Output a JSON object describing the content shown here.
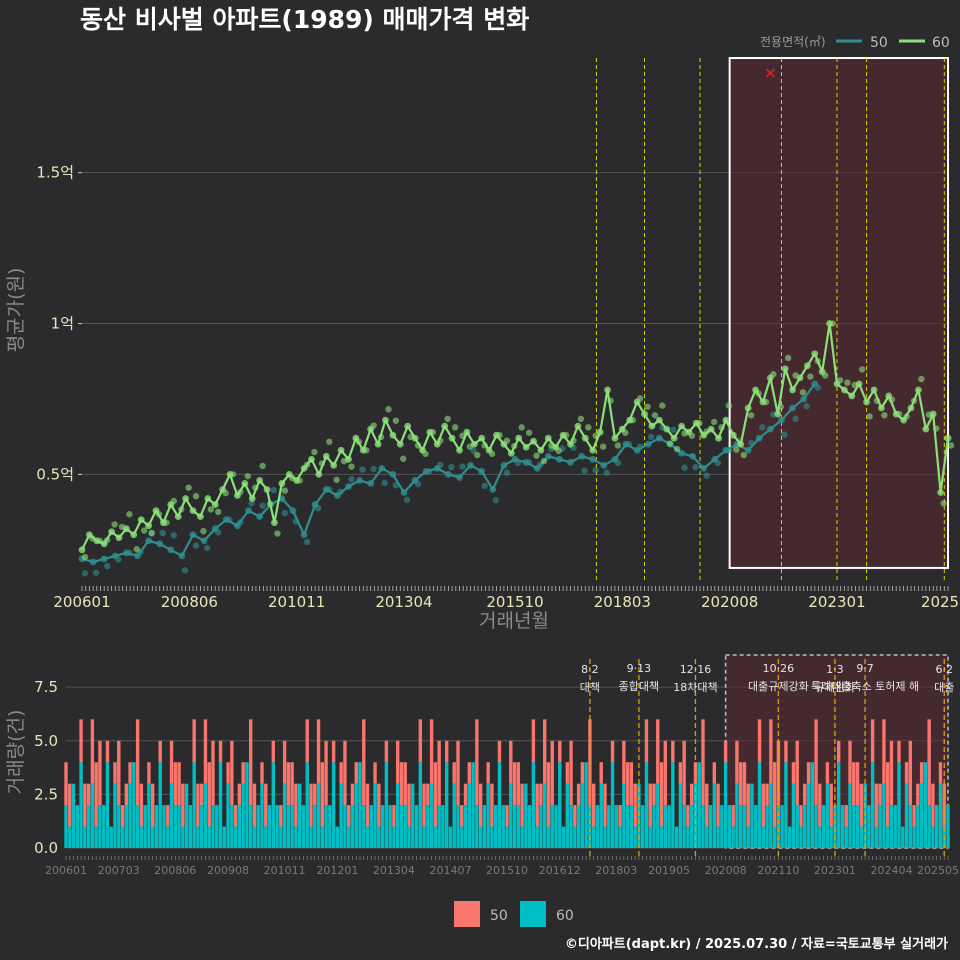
{
  "chart_data": [
    {
      "type": "line",
      "title": "동산 비사벌 아파트(1989) 매매가격 변화",
      "xlabel": "거래년월",
      "ylabel": "평균가(원)",
      "x_range": [
        "2006-01",
        "2025-07"
      ],
      "ylim": [
        0.15,
        1.9
      ],
      "y_ticks": [
        {
          "v": 0.5,
          "label": "0.5억"
        },
        {
          "v": 1.0,
          "label": "1억"
        },
        {
          "v": 1.5,
          "label": "1.5억"
        }
      ],
      "x_tick_labels": [
        "200601",
        "200806",
        "201011",
        "201304",
        "201510",
        "201803",
        "202008",
        "202301",
        "2025"
      ],
      "legend_title": "전용면적(㎡)",
      "legend_position": "top-right",
      "grid": true,
      "highlight_box": {
        "from": "2020-08",
        "to": "2025-07",
        "ymin": 0.19,
        "ymax": 1.88
      },
      "outlier_marker": {
        "x": "2021-07",
        "y": 1.83
      },
      "series": [
        {
          "name": "50",
          "color": "#2f8f8f",
          "points": [
            [
              "2006-01",
              0.22
            ],
            [
              "2006-04",
              0.21
            ],
            [
              "2006-07",
              0.22
            ],
            [
              "2006-10",
              0.23
            ],
            [
              "2007-01",
              0.24
            ],
            [
              "2007-04",
              0.23
            ],
            [
              "2007-07",
              0.28
            ],
            [
              "2007-10",
              0.27
            ],
            [
              "2008-01",
              0.25
            ],
            [
              "2008-04",
              0.23
            ],
            [
              "2008-07",
              0.3
            ],
            [
              "2008-10",
              0.28
            ],
            [
              "2009-01",
              0.32
            ],
            [
              "2009-04",
              0.35
            ],
            [
              "2009-07",
              0.33
            ],
            [
              "2009-10",
              0.38
            ],
            [
              "2010-01",
              0.36
            ],
            [
              "2010-04",
              0.4
            ],
            [
              "2010-07",
              0.42
            ],
            [
              "2010-10",
              0.38
            ],
            [
              "2011-01",
              0.3
            ],
            [
              "2011-04",
              0.4
            ],
            [
              "2011-07",
              0.45
            ],
            [
              "2011-10",
              0.43
            ],
            [
              "2012-01",
              0.46
            ],
            [
              "2012-04",
              0.48
            ],
            [
              "2012-07",
              0.47
            ],
            [
              "2012-10",
              0.52
            ],
            [
              "2013-01",
              0.5
            ],
            [
              "2013-04",
              0.44
            ],
            [
              "2013-07",
              0.48
            ],
            [
              "2013-10",
              0.51
            ],
            [
              "2014-01",
              0.52
            ],
            [
              "2014-04",
              0.5
            ],
            [
              "2014-07",
              0.49
            ],
            [
              "2014-10",
              0.53
            ],
            [
              "2015-01",
              0.51
            ],
            [
              "2015-04",
              0.45
            ],
            [
              "2015-07",
              0.53
            ],
            [
              "2015-10",
              0.55
            ],
            [
              "2016-01",
              0.54
            ],
            [
              "2016-04",
              0.52
            ],
            [
              "2016-07",
              0.56
            ],
            [
              "2016-10",
              0.55
            ],
            [
              "2017-01",
              0.54
            ],
            [
              "2017-04",
              0.56
            ],
            [
              "2017-07",
              0.55
            ],
            [
              "2017-10",
              0.53
            ],
            [
              "2018-01",
              0.55
            ],
            [
              "2018-04",
              0.6
            ],
            [
              "2018-07",
              0.58
            ],
            [
              "2018-10",
              0.6
            ],
            [
              "2019-01",
              0.62
            ],
            [
              "2019-04",
              0.6
            ],
            [
              "2019-07",
              0.57
            ],
            [
              "2019-10",
              0.56
            ],
            [
              "2020-01",
              0.52
            ],
            [
              "2020-04",
              0.55
            ],
            [
              "2020-07",
              0.58
            ],
            [
              "2020-10",
              0.6
            ],
            [
              "2021-01",
              0.58
            ],
            [
              "2021-04",
              0.62
            ],
            [
              "2021-07",
              0.65
            ],
            [
              "2021-10",
              0.68
            ],
            [
              "2022-01",
              0.72
            ],
            [
              "2022-04",
              0.75
            ],
            [
              "2022-07",
              0.8
            ]
          ]
        },
        {
          "name": "60",
          "color": "#8ce07a",
          "points": [
            [
              "2006-01",
              0.25
            ],
            [
              "2006-03",
              0.3
            ],
            [
              "2006-05",
              0.28
            ],
            [
              "2006-07",
              0.27
            ],
            [
              "2006-09",
              0.31
            ],
            [
              "2006-11",
              0.29
            ],
            [
              "2007-01",
              0.32
            ],
            [
              "2007-03",
              0.3
            ],
            [
              "2007-05",
              0.35
            ],
            [
              "2007-07",
              0.33
            ],
            [
              "2007-09",
              0.38
            ],
            [
              "2007-11",
              0.34
            ],
            [
              "2008-01",
              0.4
            ],
            [
              "2008-03",
              0.36
            ],
            [
              "2008-05",
              0.42
            ],
            [
              "2008-07",
              0.38
            ],
            [
              "2008-09",
              0.36
            ],
            [
              "2008-11",
              0.42
            ],
            [
              "2009-01",
              0.4
            ],
            [
              "2009-03",
              0.45
            ],
            [
              "2009-05",
              0.5
            ],
            [
              "2009-07",
              0.43
            ],
            [
              "2009-09",
              0.47
            ],
            [
              "2009-11",
              0.42
            ],
            [
              "2010-01",
              0.48
            ],
            [
              "2010-03",
              0.45
            ],
            [
              "2010-05",
              0.34
            ],
            [
              "2010-07",
              0.47
            ],
            [
              "2010-09",
              0.5
            ],
            [
              "2010-11",
              0.48
            ],
            [
              "2011-01",
              0.52
            ],
            [
              "2011-03",
              0.55
            ],
            [
              "2011-05",
              0.5
            ],
            [
              "2011-07",
              0.56
            ],
            [
              "2011-09",
              0.53
            ],
            [
              "2011-11",
              0.58
            ],
            [
              "2012-01",
              0.55
            ],
            [
              "2012-03",
              0.62
            ],
            [
              "2012-05",
              0.58
            ],
            [
              "2012-07",
              0.65
            ],
            [
              "2012-09",
              0.6
            ],
            [
              "2012-11",
              0.68
            ],
            [
              "2013-01",
              0.63
            ],
            [
              "2013-03",
              0.6
            ],
            [
              "2013-05",
              0.66
            ],
            [
              "2013-07",
              0.62
            ],
            [
              "2013-09",
              0.58
            ],
            [
              "2013-11",
              0.64
            ],
            [
              "2014-01",
              0.6
            ],
            [
              "2014-03",
              0.66
            ],
            [
              "2014-05",
              0.62
            ],
            [
              "2014-07",
              0.58
            ],
            [
              "2014-09",
              0.64
            ],
            [
              "2014-11",
              0.6
            ],
            [
              "2015-01",
              0.62
            ],
            [
              "2015-03",
              0.58
            ],
            [
              "2015-05",
              0.63
            ],
            [
              "2015-07",
              0.6
            ],
            [
              "2015-09",
              0.57
            ],
            [
              "2015-11",
              0.62
            ],
            [
              "2016-01",
              0.59
            ],
            [
              "2016-03",
              0.61
            ],
            [
              "2016-05",
              0.58
            ],
            [
              "2016-07",
              0.62
            ],
            [
              "2016-09",
              0.59
            ],
            [
              "2016-11",
              0.63
            ],
            [
              "2017-01",
              0.6
            ],
            [
              "2017-03",
              0.66
            ],
            [
              "2017-05",
              0.62
            ],
            [
              "2017-07",
              0.58
            ],
            [
              "2017-09",
              0.64
            ],
            [
              "2017-11",
              0.78
            ],
            [
              "2018-01",
              0.62
            ],
            [
              "2018-03",
              0.65
            ],
            [
              "2018-05",
              0.68
            ],
            [
              "2018-07",
              0.74
            ],
            [
              "2018-09",
              0.7
            ],
            [
              "2018-11",
              0.66
            ],
            [
              "2019-01",
              0.68
            ],
            [
              "2019-03",
              0.65
            ],
            [
              "2019-05",
              0.62
            ],
            [
              "2019-07",
              0.66
            ],
            [
              "2019-09",
              0.64
            ],
            [
              "2019-11",
              0.67
            ],
            [
              "2020-01",
              0.63
            ],
            [
              "2020-03",
              0.65
            ],
            [
              "2020-05",
              0.62
            ],
            [
              "2020-07",
              0.68
            ],
            [
              "2020-09",
              0.63
            ],
            [
              "2020-11",
              0.6
            ],
            [
              "2021-01",
              0.72
            ],
            [
              "2021-03",
              0.78
            ],
            [
              "2021-05",
              0.74
            ],
            [
              "2021-07",
              0.82
            ],
            [
              "2021-09",
              0.7
            ],
            [
              "2021-11",
              0.85
            ],
            [
              "2022-01",
              0.78
            ],
            [
              "2022-03",
              0.82
            ],
            [
              "2022-05",
              0.86
            ],
            [
              "2022-07",
              0.9
            ],
            [
              "2022-09",
              0.84
            ],
            [
              "2022-11",
              1.0
            ],
            [
              "2023-01",
              0.8
            ],
            [
              "2023-03",
              0.78
            ],
            [
              "2023-05",
              0.76
            ],
            [
              "2023-07",
              0.8
            ],
            [
              "2023-09",
              0.74
            ],
            [
              "2023-11",
              0.78
            ],
            [
              "2024-01",
              0.72
            ],
            [
              "2024-03",
              0.76
            ],
            [
              "2024-05",
              0.7
            ],
            [
              "2024-07",
              0.68
            ],
            [
              "2024-09",
              0.72
            ],
            [
              "2024-11",
              0.78
            ],
            [
              "2025-01",
              0.65
            ],
            [
              "2025-03",
              0.7
            ],
            [
              "2025-05",
              0.44
            ],
            [
              "2025-07",
              0.62
            ]
          ]
        }
      ]
    },
    {
      "type": "bar",
      "stacked": true,
      "ylabel": "거래량(건)",
      "ylim": [
        0,
        9
      ],
      "y_ticks": [
        {
          "v": 0,
          "label": "0.0"
        },
        {
          "v": 2.5,
          "label": "2.5"
        },
        {
          "v": 5,
          "label": "5.0"
        },
        {
          "v": 7.5,
          "label": "7.5"
        }
      ],
      "x_tick_labels": [
        "200601",
        "200703",
        "200806",
        "200908",
        "201011",
        "201201",
        "201304",
        "201407",
        "201510",
        "201612",
        "201803",
        "201905",
        "202008",
        "202110",
        "202301",
        "202404",
        "202505"
      ],
      "legend_position": "bottom",
      "grid": true,
      "highlight_box": {
        "from": "2020-08",
        "to": "2025-07",
        "ymin": 0,
        "ymax": 9
      },
      "series": [
        {
          "name": "50",
          "color": "#f8766d"
        },
        {
          "name": "60",
          "color": "#00bfc4"
        }
      ],
      "pattern_60": [
        2,
        1,
        3,
        2,
        4,
        1,
        2,
        3,
        1,
        2,
        2,
        4,
        1,
        3,
        2,
        1,
        2,
        3,
        4,
        2,
        1,
        2,
        3,
        1,
        2,
        4,
        2,
        1,
        3,
        2
      ],
      "pattern_50": [
        2,
        1,
        0,
        3,
        1,
        2,
        0,
        2,
        3,
        1,
        0,
        2,
        1,
        4,
        0,
        1,
        2,
        1,
        0,
        3,
        2,
        0,
        1,
        2,
        0,
        1,
        3,
        0,
        2,
        1
      ],
      "policy_lines": [
        {
          "date": "2017-08",
          "label": "8·2 대책"
        },
        {
          "date": "2018-09",
          "label": "9·13 종합대책"
        },
        {
          "date": "2019-12",
          "label": "12·16 18차대책"
        },
        {
          "date": "2021-10",
          "label": "10·26 대출규제강화"
        },
        {
          "date": "2023-01",
          "label": "1·3 규제완화"
        },
        {
          "date": "2023-09",
          "label": "9·7 특례대출축소 토허제 해"
        },
        {
          "date": "2025-06",
          "label": "6·2 대출"
        }
      ]
    }
  ],
  "credit": "©디아파트(dapt.kr) / 2025.07.30 / 자료=국토교통부 실거래가"
}
